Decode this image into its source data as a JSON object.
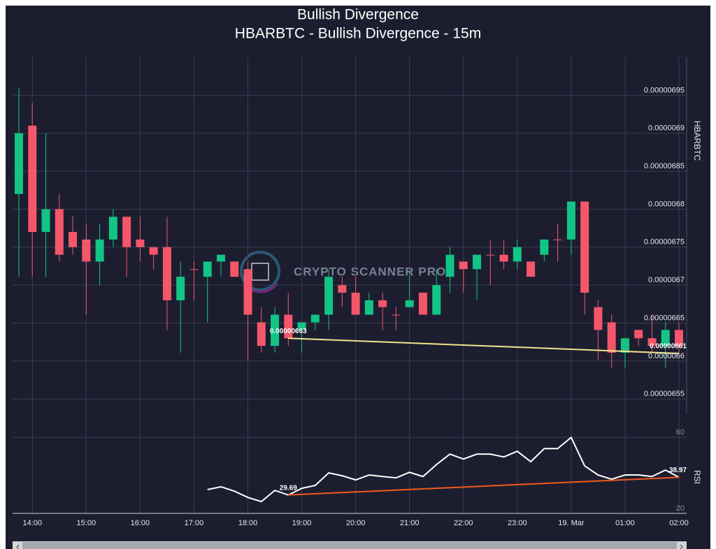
{
  "chart_data": [
    {
      "type": "candlestick",
      "title": "Bullish Divergence",
      "subtitle": "HBARBTC - Bullish Divergence - 15m",
      "y_label": "HBARBTC",
      "categories": [
        null,
        "14:00",
        null,
        null,
        null,
        "15:00",
        null,
        null,
        null,
        "16:00",
        null,
        null,
        null,
        "17:00",
        null,
        null,
        null,
        "18:00",
        null,
        null,
        null,
        "19:00",
        null,
        null,
        null,
        "20:00",
        null,
        null,
        null,
        "21:00",
        null,
        null,
        null,
        "22:00",
        null,
        null,
        null,
        "23:00",
        null,
        null,
        null,
        "19. Mar",
        null,
        null,
        null,
        "01:00",
        null,
        null,
        null,
        "02:00"
      ],
      "open": [
        6.82e-07,
        6.91e-07,
        6.77e-07,
        6.8e-07,
        6.77e-07,
        6.76e-07,
        6.731e-07,
        6.76e-07,
        6.79e-07,
        6.76e-07,
        6.75e-07,
        6.75e-07,
        6.68e-07,
        6.721e-07,
        6.711e-07,
        6.731e-07,
        6.731e-07,
        6.721e-07,
        6.651e-07,
        6.62e-07,
        6.661e-07,
        6.641e-07,
        6.651e-07,
        6.661e-07,
        6.7e-07,
        6.69e-07,
        6.661e-07,
        6.68e-07,
        6.661e-07,
        6.671e-07,
        6.69e-07,
        6.661e-07,
        6.711e-07,
        6.731e-07,
        6.721e-07,
        6.74e-07,
        6.74e-07,
        6.731e-07,
        6.731e-07,
        6.74e-07,
        6.76e-07,
        6.76e-07,
        6.81e-07,
        6.671e-07,
        6.651e-07,
        6.611e-07,
        6.641e-07,
        6.63e-07,
        6.62e-07,
        6.641e-07
      ],
      "high": [
        6.96e-07,
        6.94e-07,
        6.9e-07,
        6.82e-07,
        6.791e-07,
        6.781e-07,
        6.781e-07,
        6.8e-07,
        6.79e-07,
        6.79e-07,
        6.75e-07,
        6.79e-07,
        6.731e-07,
        6.731e-07,
        6.731e-07,
        6.74e-07,
        6.731e-07,
        6.731e-07,
        6.671e-07,
        6.671e-07,
        6.69e-07,
        6.651e-07,
        6.661e-07,
        6.721e-07,
        6.711e-07,
        6.711e-07,
        6.69e-07,
        6.69e-07,
        6.671e-07,
        6.721e-07,
        6.69e-07,
        6.721e-07,
        6.75e-07,
        6.731e-07,
        6.74e-07,
        6.76e-07,
        6.76e-07,
        6.76e-07,
        6.731e-07,
        6.76e-07,
        6.781e-07,
        6.81e-07,
        6.81e-07,
        6.68e-07,
        6.661e-07,
        6.63e-07,
        6.641e-07,
        6.661e-07,
        6.651e-07,
        6.651e-07
      ],
      "low": [
        6.711e-07,
        6.711e-07,
        6.711e-07,
        6.731e-07,
        6.74e-07,
        6.661e-07,
        6.7e-07,
        6.75e-07,
        6.711e-07,
        6.731e-07,
        6.721e-07,
        6.641e-07,
        6.611e-07,
        6.68e-07,
        6.651e-07,
        6.711e-07,
        6.711e-07,
        6.601e-07,
        6.611e-07,
        6.611e-07,
        6.62e-07,
        6.611e-07,
        6.641e-07,
        6.641e-07,
        6.671e-07,
        6.661e-07,
        6.661e-07,
        6.641e-07,
        6.641e-07,
        6.671e-07,
        6.661e-07,
        6.661e-07,
        6.69e-07,
        6.69e-07,
        6.68e-07,
        6.7e-07,
        6.721e-07,
        6.721e-07,
        6.711e-07,
        6.731e-07,
        6.731e-07,
        6.74e-07,
        6.661e-07,
        6.601e-07,
        6.591e-07,
        6.591e-07,
        6.62e-07,
        6.611e-07,
        6.591e-07,
        6.611e-07
      ],
      "close": [
        6.9e-07,
        6.77e-07,
        6.8e-07,
        6.74e-07,
        6.75e-07,
        6.731e-07,
        6.76e-07,
        6.79e-07,
        6.75e-07,
        6.75e-07,
        6.74e-07,
        6.68e-07,
        6.711e-07,
        6.721e-07,
        6.731e-07,
        6.74e-07,
        6.711e-07,
        6.661e-07,
        6.62e-07,
        6.661e-07,
        6.63e-07,
        6.651e-07,
        6.661e-07,
        6.711e-07,
        6.69e-07,
        6.661e-07,
        6.68e-07,
        6.671e-07,
        6.661e-07,
        6.68e-07,
        6.661e-07,
        6.7e-07,
        6.74e-07,
        6.721e-07,
        6.74e-07,
        6.74e-07,
        6.731e-07,
        6.75e-07,
        6.711e-07,
        6.76e-07,
        6.76e-07,
        6.81e-07,
        6.69e-07,
        6.641e-07,
        6.611e-07,
        6.63e-07,
        6.63e-07,
        6.62e-07,
        6.641e-07,
        6.62e-07
      ],
      "up_color": "#12c486",
      "down_color": "#f4566b",
      "ylim": [
        6.53e-07,
        7e-07
      ],
      "yticks": [
        {
          "value": 6.55e-07,
          "label": "0.00000655"
        },
        {
          "value": 6.6e-07,
          "label": "0.0000066"
        },
        {
          "value": 6.65e-07,
          "label": "0.00000665"
        },
        {
          "value": 6.7e-07,
          "label": "0.0000067"
        },
        {
          "value": 6.75e-07,
          "label": "0.00000675"
        },
        {
          "value": 6.8e-07,
          "label": "0.0000068"
        },
        {
          "value": 6.85e-07,
          "label": "0.00000685"
        },
        {
          "value": 6.9e-07,
          "label": "0.0000069"
        },
        {
          "value": 6.95e-07,
          "label": "0.00000695"
        }
      ],
      "grid": true,
      "divergence": {
        "color": "#f3e38a",
        "values": [
          null,
          null,
          null,
          null,
          null,
          null,
          null,
          null,
          null,
          null,
          null,
          null,
          null,
          null,
          null,
          null,
          null,
          null,
          null,
          null,
          6.63e-07,
          null,
          null,
          null,
          null,
          null,
          null,
          null,
          null,
          null,
          null,
          null,
          null,
          null,
          null,
          null,
          null,
          null,
          null,
          null,
          null,
          null,
          null,
          null,
          null,
          null,
          null,
          null,
          null,
          6.61e-07
        ],
        "value_labels": [
          null,
          null,
          null,
          null,
          null,
          null,
          null,
          null,
          null,
          null,
          null,
          null,
          null,
          null,
          null,
          null,
          null,
          null,
          null,
          null,
          "0.00000663",
          null,
          null,
          null,
          null,
          null,
          null,
          null,
          null,
          null,
          null,
          null,
          null,
          null,
          null,
          null,
          null,
          null,
          null,
          null,
          null,
          null,
          null,
          null,
          null,
          null,
          null,
          null,
          null,
          "0.00000661"
        ]
      }
    },
    {
      "type": "line",
      "y_label": "RSI",
      "color": "#ffffff",
      "values": [
        null,
        null,
        null,
        null,
        null,
        null,
        null,
        null,
        null,
        null,
        null,
        null,
        null,
        null,
        32.5,
        34.0,
        31.7,
        28.4,
        26.2,
        32.1,
        29.69,
        33.2,
        34.7,
        41.3,
        39.8,
        37.6,
        40.2,
        39.4,
        38.7,
        41.6,
        39.4,
        45.7,
        51.2,
        48.6,
        51.2,
        51.2,
        49.7,
        52.7,
        47.2,
        54.1,
        54.1,
        60.0,
        45.0,
        40.2,
        38.0,
        40.2,
        40.2,
        39.4,
        42.8,
        38.97
      ],
      "ylim": [
        20,
        70
      ],
      "yticks": [
        20,
        60
      ],
      "grid": true,
      "divergence": {
        "color": "#f05a1e",
        "values": [
          null,
          null,
          null,
          null,
          null,
          null,
          null,
          null,
          null,
          null,
          null,
          null,
          null,
          null,
          null,
          null,
          null,
          null,
          null,
          null,
          29.69,
          null,
          null,
          null,
          null,
          null,
          null,
          null,
          null,
          null,
          null,
          null,
          null,
          null,
          null,
          null,
          null,
          null,
          null,
          null,
          null,
          null,
          null,
          null,
          null,
          null,
          null,
          null,
          null,
          38.97
        ],
        "value_labels": [
          null,
          null,
          null,
          null,
          null,
          null,
          null,
          null,
          null,
          null,
          null,
          null,
          null,
          null,
          null,
          null,
          null,
          null,
          null,
          null,
          "29.69",
          null,
          null,
          null,
          null,
          null,
          null,
          null,
          null,
          null,
          null,
          null,
          null,
          null,
          null,
          null,
          null,
          null,
          null,
          null,
          null,
          null,
          null,
          null,
          null,
          null,
          null,
          null,
          null,
          "38.97"
        ]
      }
    }
  ],
  "watermark": "CRYPTO SCANNER PRO"
}
